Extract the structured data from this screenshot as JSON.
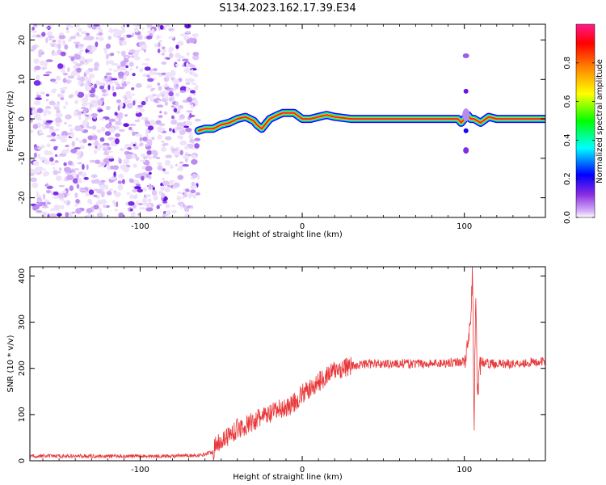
{
  "title": "S134.2023.162.17.39.E34",
  "chart_data": [
    {
      "type": "heatmap",
      "xlabel": "Height of straight line (km)",
      "ylabel": "Frequency (Hz)",
      "xlim": [
        -168,
        150
      ],
      "ylim": [
        -25,
        24
      ],
      "xticks": [
        -100,
        0,
        100
      ],
      "yticks": [
        -20,
        -10,
        0,
        10,
        20
      ],
      "noise_region_x": [
        -168,
        -64
      ],
      "signal_track": {
        "x": [
          -64,
          -60,
          -55,
          -50,
          -45,
          -40,
          -35,
          -30,
          -28,
          -25,
          -22,
          -20,
          -15,
          -12,
          -8,
          -5,
          0,
          5,
          10,
          15,
          20,
          30,
          50,
          70,
          90,
          96,
          98,
          100,
          102,
          104,
          106,
          110,
          115,
          120,
          150
        ],
        "y": [
          -3,
          -2.5,
          -2.5,
          -1.5,
          -1,
          0,
          0.5,
          -0.5,
          -1.5,
          -2.5,
          -1,
          0,
          1,
          1.5,
          1.5,
          1.5,
          0,
          0,
          0.5,
          1,
          0.5,
          0,
          0,
          0,
          0,
          0,
          -1,
          0,
          1,
          0,
          0,
          -1,
          0.5,
          0,
          0
        ]
      },
      "colorbar": {
        "label": "Normalized spectral amplitude",
        "range": [
          0,
          1
        ],
        "ticks": [
          "0.0",
          "0.2",
          "0.4",
          "0.6",
          "0.8"
        ],
        "ticks_values": [
          0,
          0.2,
          0.4,
          0.6,
          0.8
        ],
        "colors": [
          "#ffffff",
          "#d8b4f8",
          "#8a2be2",
          "#0000ff",
          "#00ffff",
          "#00ff00",
          "#ffff00",
          "#ff8000",
          "#ff0000",
          "#ff1a8c"
        ]
      }
    },
    {
      "type": "line",
      "xlabel": "Height of straight line (km)",
      "ylabel": "SNR (10 * v/v)",
      "xlim": [
        -168,
        150
      ],
      "ylim": [
        0,
        420
      ],
      "xticks": [
        -100,
        0,
        100
      ],
      "yticks": [
        0,
        100,
        200,
        300,
        400
      ],
      "series_color": "#e8383a",
      "series": {
        "x": [
          -168,
          -120,
          -80,
          -62,
          -55,
          -52,
          -45,
          -40,
          -35,
          -30,
          -25,
          -20,
          -15,
          -10,
          -5,
          0,
          5,
          10,
          15,
          20,
          25,
          30,
          40,
          60,
          80,
          100,
          102,
          104,
          105,
          106,
          107,
          108,
          110,
          115,
          130,
          150
        ],
        "y": [
          10,
          10,
          10,
          12,
          20,
          40,
          55,
          70,
          75,
          85,
          95,
          100,
          110,
          115,
          125,
          145,
          155,
          170,
          185,
          195,
          200,
          205,
          210,
          210,
          210,
          215,
          240,
          300,
          420,
          60,
          380,
          140,
          215,
          210,
          210,
          215
        ]
      }
    }
  ]
}
